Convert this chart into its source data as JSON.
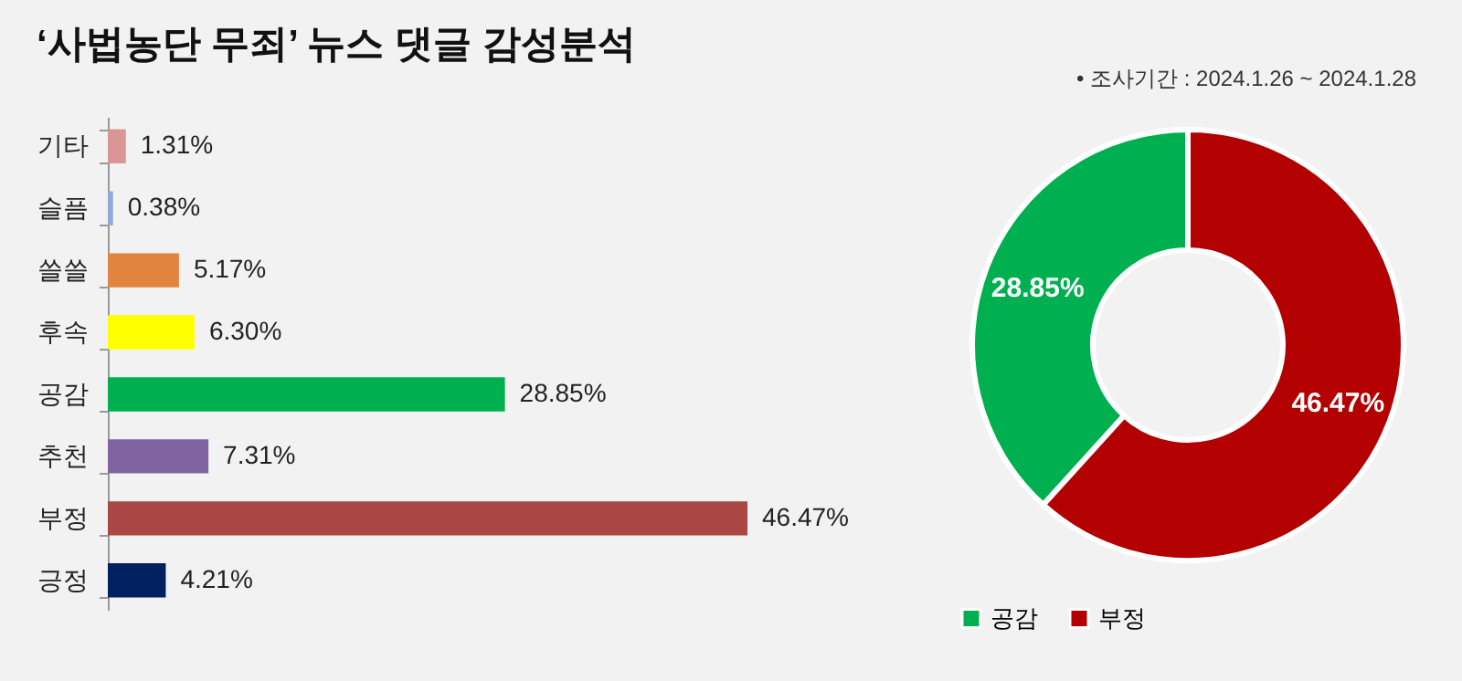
{
  "chart_data": [
    {
      "type": "bar",
      "title": "‘사법농단 무죄’ 뉴스 댓글 감성분석",
      "orientation": "horizontal",
      "categories": [
        "기타",
        "슬픔",
        "쓸쓸",
        "후속",
        "공감",
        "추천",
        "부정",
        "긍정"
      ],
      "values": [
        1.31,
        0.38,
        5.17,
        6.3,
        28.85,
        7.31,
        46.47,
        4.21
      ],
      "value_labels": [
        "1.31%",
        "0.38%",
        "5.17%",
        "6.30%",
        "28.85%",
        "7.31%",
        "46.47%",
        "4.21%"
      ],
      "colors": [
        "#d99694",
        "#8eaadb",
        "#e0843e",
        "#ffff00",
        "#00b050",
        "#8064a2",
        "#aa4744",
        "#002060"
      ]
    },
    {
      "type": "donut",
      "annotations": [
        "•    조사기간 : 2024.1.26 ~ 2024.1.28"
      ],
      "categories": [
        "공감",
        "부정"
      ],
      "values": [
        28.85,
        46.47
      ],
      "value_labels": [
        "28.85%",
        "46.47%"
      ],
      "colors": [
        "#00b050",
        "#b30000"
      ],
      "legend": "bottom"
    }
  ]
}
